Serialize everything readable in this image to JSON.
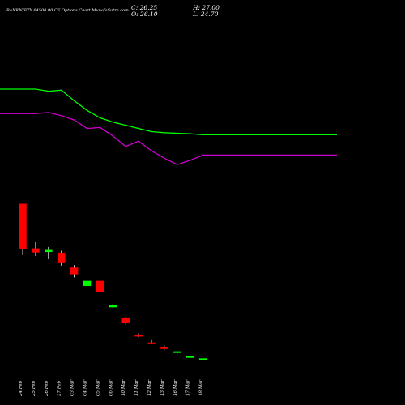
{
  "header": {
    "title": "BANKNIFTY 64500.00 CE Options Chart MunafaSutra.com",
    "close_label": "C: 26.25",
    "open_label": "O: 26.10",
    "high_label": "H: 27.00",
    "low_label": "L: 24.70"
  },
  "colors": {
    "background": "#000000",
    "up_candle": "#00ff00",
    "down_candle": "#ff0000",
    "wick": "#ffffff",
    "ma_short": "#00ff00",
    "ma_long": "#cc00cc"
  },
  "chart_data": {
    "type": "candlestick",
    "title": "BANKNIFTY 64500.00 CE Options Chart MunafaSutra.com",
    "x": [
      "24 Feb",
      "25 Feb",
      "26 Feb",
      "27 Feb",
      "03 Mar",
      "04 Mar",
      "05 Mar",
      "06 Mar",
      "10 Mar",
      "11 Mar",
      "12 Mar",
      "13 Mar",
      "16 Mar",
      "17 Mar",
      "18 Mar"
    ],
    "candles": [
      {
        "date": "24 Feb",
        "open": 1480,
        "high": 1480,
        "low": 1000,
        "close": 1060,
        "direction": "down"
      },
      {
        "date": "25 Feb",
        "open": 1060,
        "high": 1120,
        "low": 990,
        "close": 1025,
        "direction": "down"
      },
      {
        "date": "26 Feb",
        "open": 1030,
        "high": 1075,
        "low": 960,
        "close": 1045,
        "direction": "up"
      },
      {
        "date": "27 Feb",
        "open": 1020,
        "high": 1040,
        "low": 900,
        "close": 925,
        "direction": "down"
      },
      {
        "date": "03 Mar",
        "open": 880,
        "high": 905,
        "low": 790,
        "close": 820,
        "direction": "down"
      },
      {
        "date": "04 Mar",
        "open": 710,
        "high": 760,
        "low": 700,
        "close": 755,
        "direction": "up"
      },
      {
        "date": "05 Mar",
        "open": 755,
        "high": 770,
        "low": 620,
        "close": 650,
        "direction": "down"
      },
      {
        "date": "06 Mar",
        "open": 510,
        "high": 545,
        "low": 500,
        "close": 530,
        "direction": "up"
      },
      {
        "date": "10 Mar",
        "open": 410,
        "high": 420,
        "low": 345,
        "close": 360,
        "direction": "down"
      },
      {
        "date": "11 Mar",
        "open": 250,
        "high": 265,
        "low": 225,
        "close": 235,
        "direction": "down"
      },
      {
        "date": "12 Mar",
        "open": 175,
        "high": 200,
        "low": 160,
        "close": 168,
        "direction": "down"
      },
      {
        "date": "13 Mar",
        "open": 135,
        "high": 148,
        "low": 110,
        "close": 118,
        "direction": "down"
      },
      {
        "date": "16 Mar",
        "open": 88,
        "high": 95,
        "low": 72,
        "close": 92,
        "direction": "up"
      },
      {
        "date": "17 Mar",
        "open": 40,
        "high": 48,
        "low": 32,
        "close": 46,
        "direction": "up"
      },
      {
        "date": "18 Mar",
        "open": 26.1,
        "high": 27.0,
        "low": 24.7,
        "close": 26.25,
        "direction": "up"
      }
    ],
    "ma_lines": [
      {
        "color": "#00ff00",
        "values": [
          2560,
          2560,
          2540,
          2550,
          2450,
          2360,
          2290,
          2250,
          2220,
          2190,
          2160,
          2150,
          2145,
          2140,
          2130
        ]
      },
      {
        "color": "#cc00cc",
        "values": [
          2330,
          2330,
          2340,
          2310,
          2270,
          2190,
          2200,
          2120,
          2020,
          2070,
          1980,
          1910,
          1850,
          1890,
          1940
        ]
      }
    ],
    "ylim": [
      0,
      2560
    ],
    "grid": false,
    "legend": "none"
  }
}
